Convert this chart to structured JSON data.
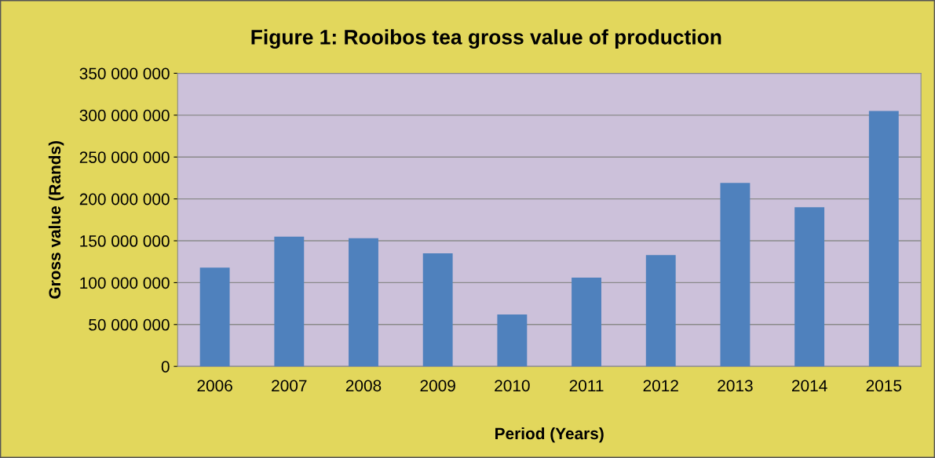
{
  "chart_data": {
    "type": "bar",
    "title": "Figure 1: Rooibos tea gross value of production",
    "xlabel": "Period (Years)",
    "ylabel": "Gross value (Rands)",
    "categories": [
      "2006",
      "2007",
      "2008",
      "2009",
      "2010",
      "2011",
      "2012",
      "2013",
      "2014",
      "2015"
    ],
    "values": [
      118000000,
      155000000,
      153000000,
      135000000,
      62000000,
      106000000,
      133000000,
      219000000,
      190000000,
      305000000
    ],
    "color": "#4f81bd",
    "ylim": [
      0,
      350000000
    ],
    "yticks": [
      0,
      {
        "value": 50000000,
        "label": "50 000 000"
      },
      {
        "value": 100000000,
        "label": "100 000 000"
      },
      {
        "value": 150000000,
        "label": "150 000 000"
      },
      {
        "value": 200000000,
        "label": "200 000 000"
      },
      {
        "value": 250000000,
        "label": "250 000 000"
      },
      {
        "value": 300000000,
        "label": "300 000 000"
      },
      {
        "value": 350000000,
        "label": "350 000 000"
      }
    ],
    "grid": "y"
  }
}
